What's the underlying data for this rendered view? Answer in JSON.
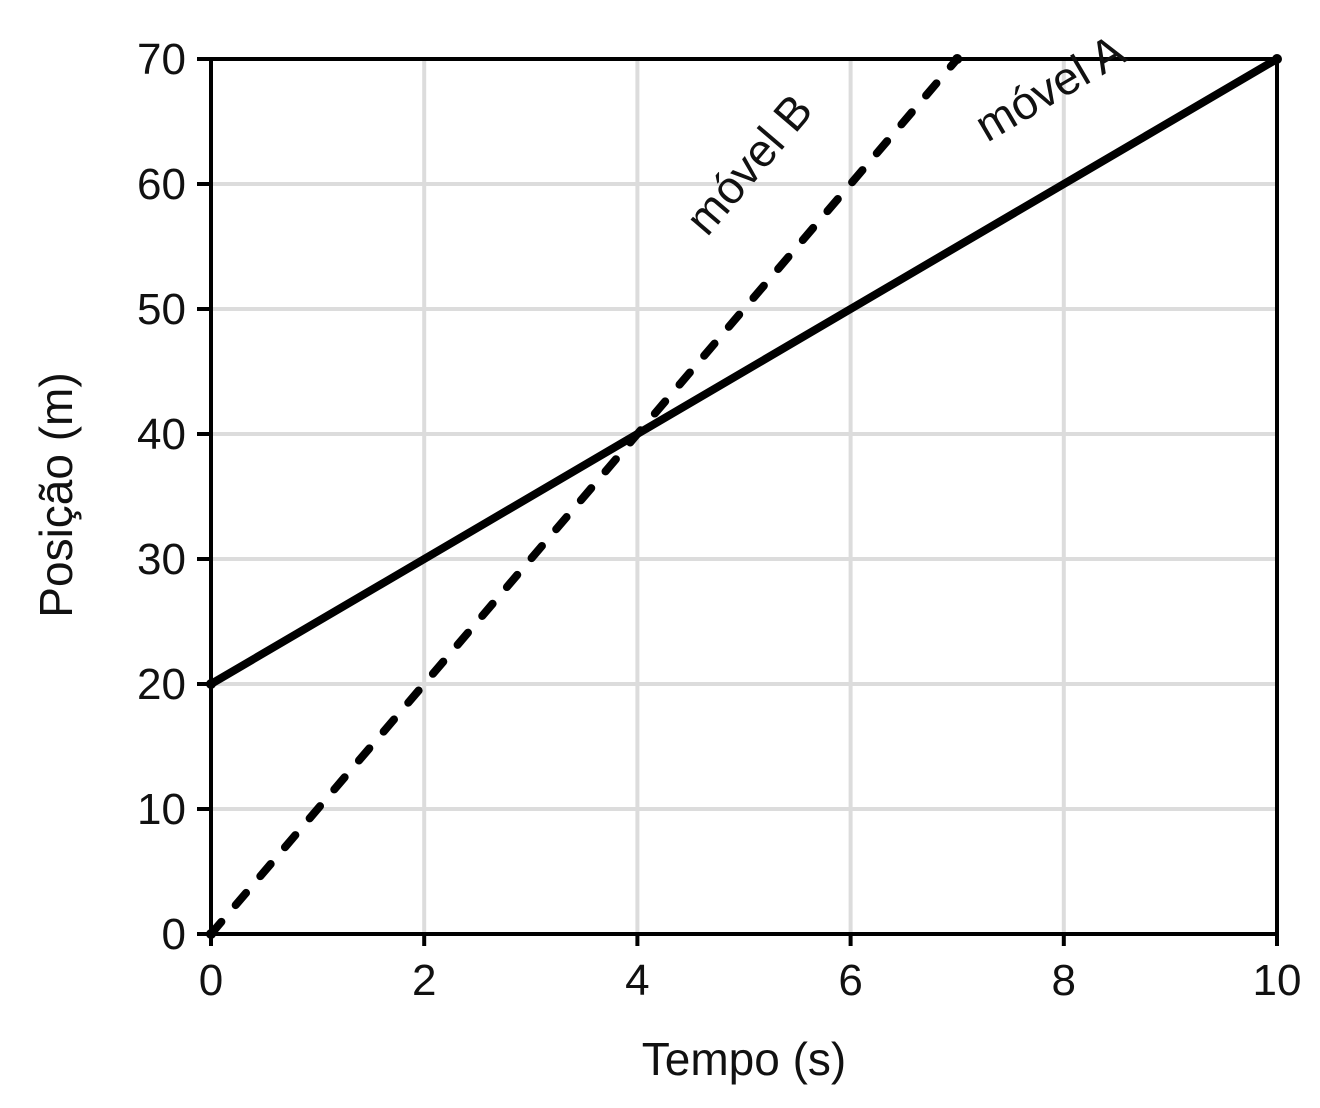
{
  "chart_data": {
    "type": "line",
    "xlabel": "Tempo (s)",
    "ylabel": "Posição (m)",
    "xlim": [
      0,
      10
    ],
    "ylim": [
      0,
      70
    ],
    "xticks": [
      0,
      2,
      4,
      6,
      8,
      10
    ],
    "yticks": [
      0,
      10,
      20,
      30,
      40,
      50,
      60,
      70
    ],
    "grid": true,
    "series": [
      {
        "name": "móvel A",
        "style": "solid",
        "color": "#000000",
        "x": [
          0,
          10
        ],
        "y": [
          20,
          70
        ]
      },
      {
        "name": "móvel B",
        "style": "dashed",
        "color": "#000000",
        "x": [
          0,
          7
        ],
        "y": [
          0,
          70
        ]
      }
    ]
  }
}
